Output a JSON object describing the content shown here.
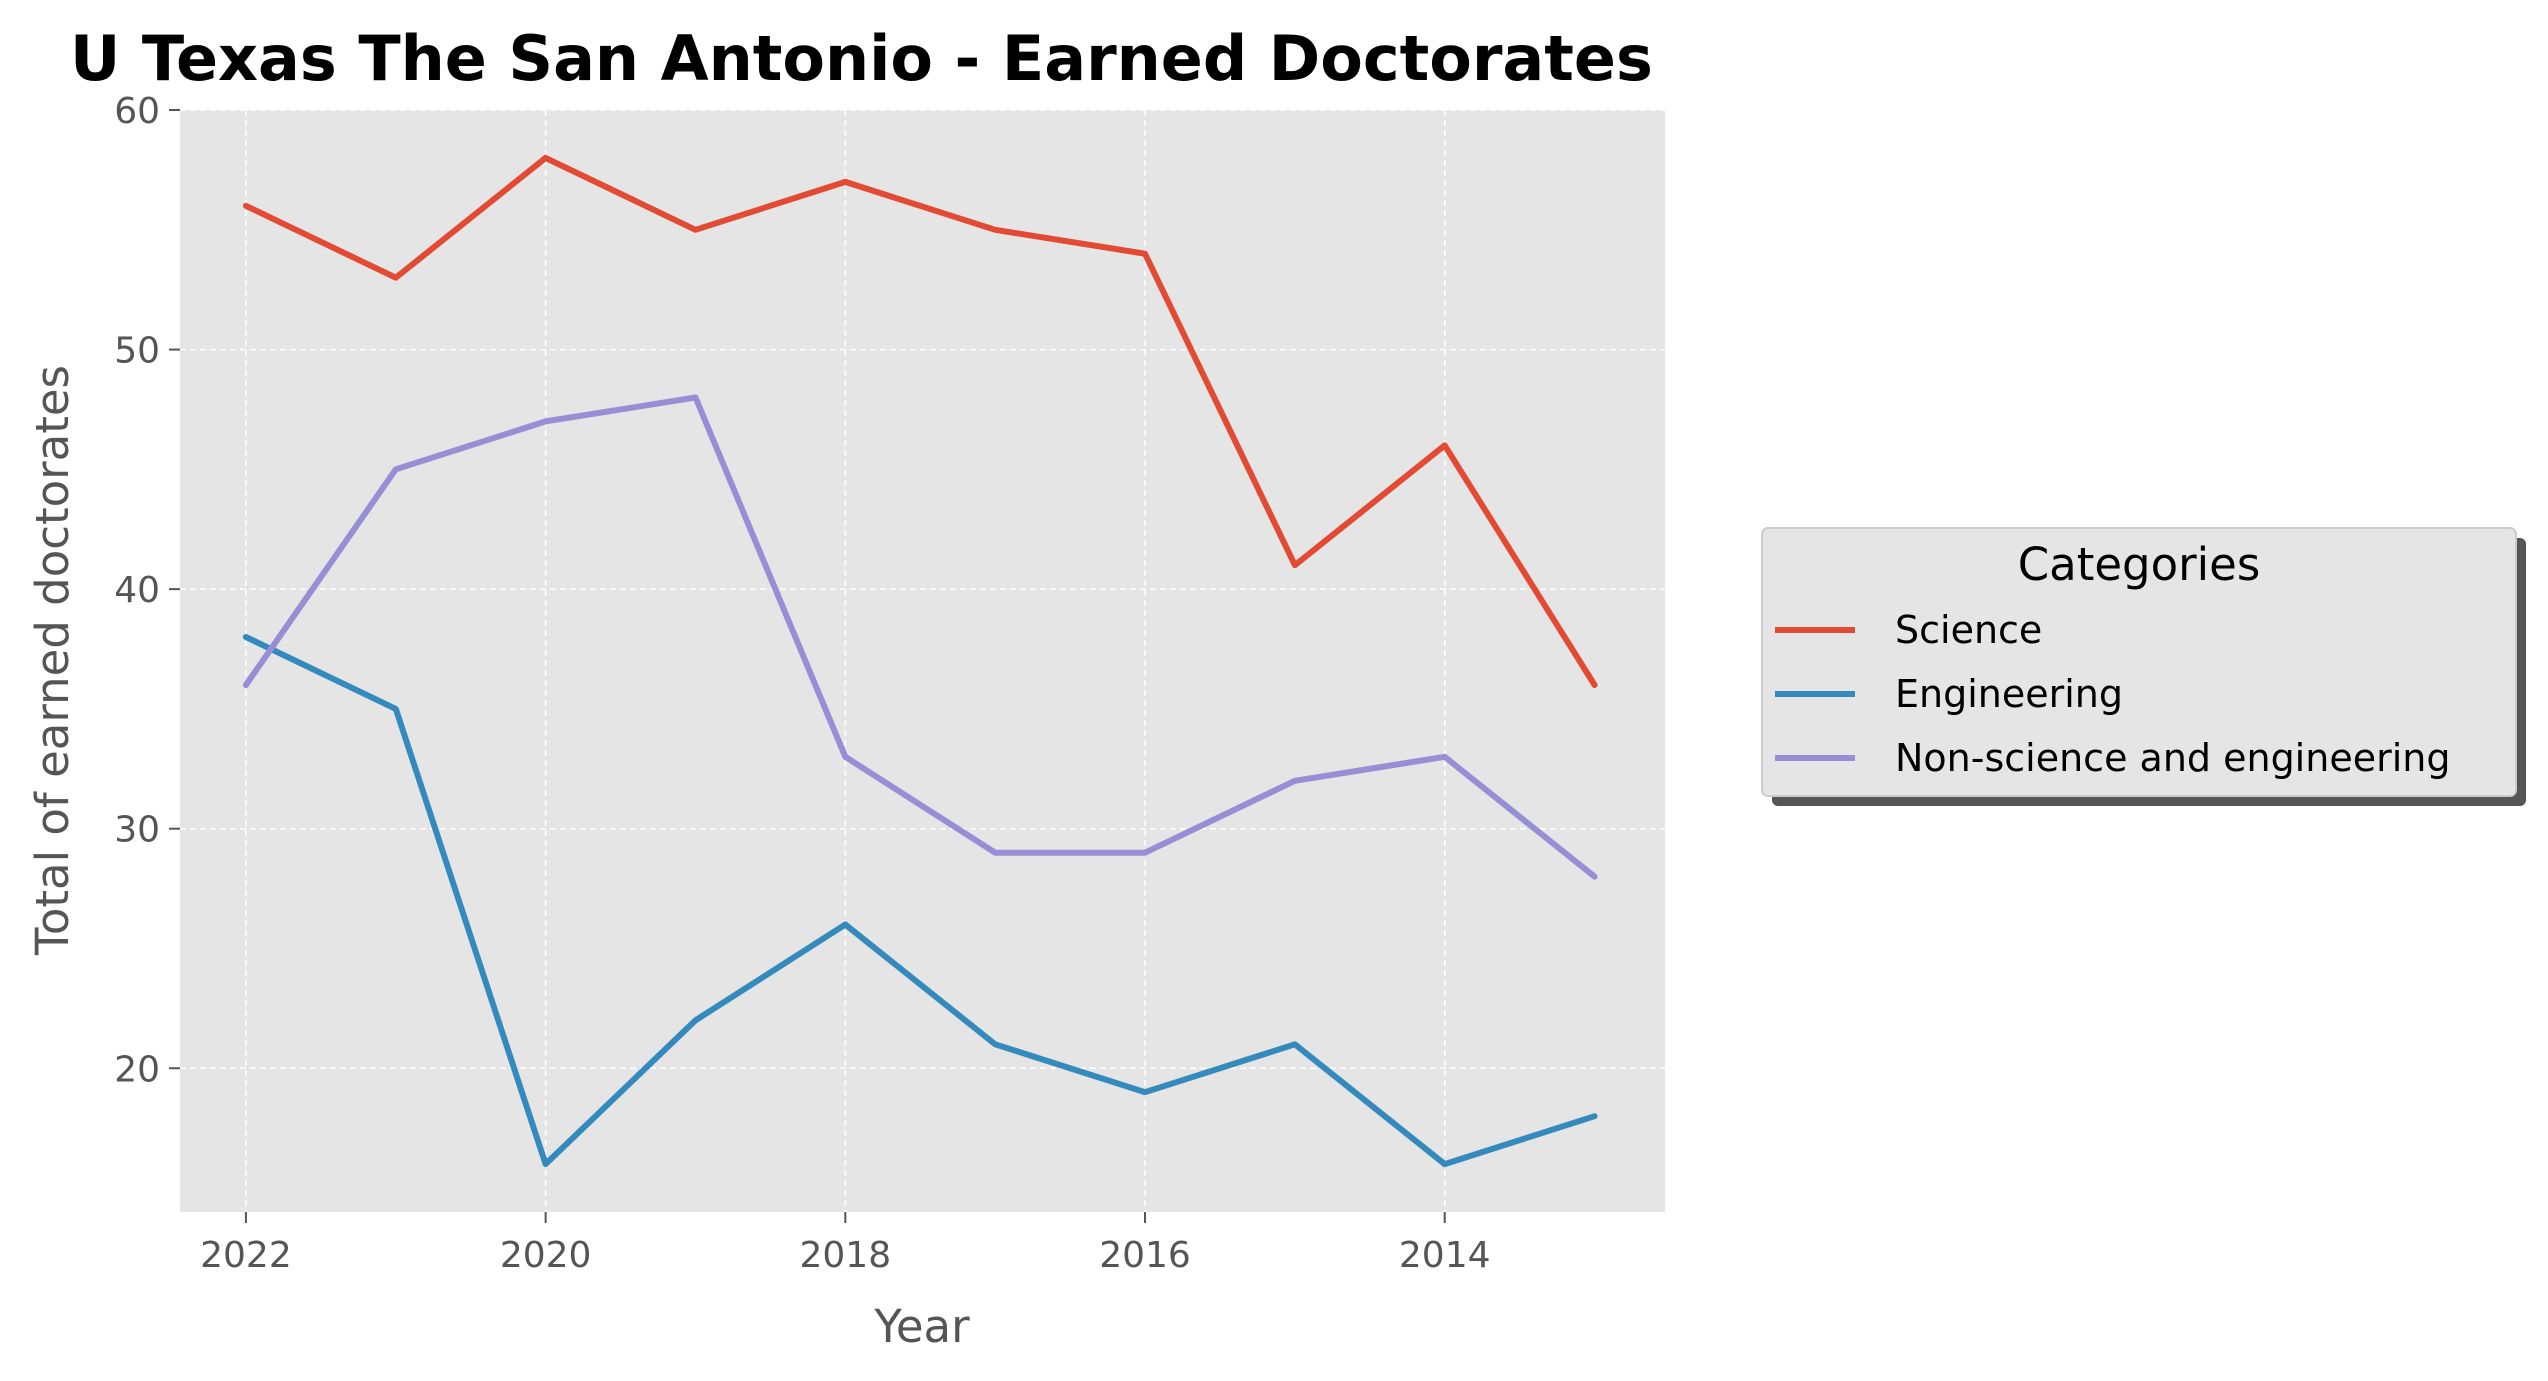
{
  "chart_data": {
    "type": "line",
    "title": "U Texas The San Antonio - Earned Doctorates",
    "xlabel": "Year",
    "ylabel": "Total of earned doctorates",
    "x": [
      2022,
      2021,
      2020,
      2019,
      2018,
      2017,
      2016,
      2015,
      2014,
      2013
    ],
    "x_reversed": true,
    "xticks": [
      2022,
      2020,
      2018,
      2016,
      2014
    ],
    "yticks": [
      20,
      30,
      40,
      50,
      60
    ],
    "xlim": [
      2022.44,
      2012.53
    ],
    "ylim": [
      14,
      60
    ],
    "grid": true,
    "legend": {
      "title": "Categories",
      "placement": "center-right outside"
    },
    "series": [
      {
        "name": "Science",
        "color": "#E24A33",
        "values": [
          56,
          53,
          58,
          55,
          57,
          55,
          54,
          41,
          46,
          36
        ]
      },
      {
        "name": "Engineering",
        "color": "#348ABD",
        "values": [
          38,
          35,
          16,
          22,
          26,
          21,
          19,
          21,
          16,
          18
        ]
      },
      {
        "name": "Non-science and engineering",
        "color": "#988ED5",
        "values": [
          36,
          45,
          47,
          48,
          33,
          29,
          29,
          32,
          33,
          28
        ]
      }
    ]
  }
}
